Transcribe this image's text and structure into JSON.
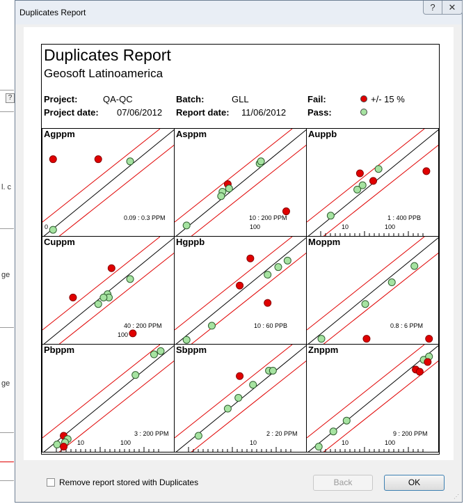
{
  "window": {
    "title": "Duplicates Report",
    "help_glyph": "?",
    "close_glyph": "✕"
  },
  "background_app": {
    "fragments": [
      "?",
      "l. c",
      "ge",
      "ge"
    ]
  },
  "report": {
    "title": "Duplicates Report",
    "company": "Geosoft Latinoamerica",
    "project_label": "Project:",
    "project": "QA-QC",
    "batch_label": "Batch:",
    "batch": "GLL",
    "fail_label": "Fail:",
    "fail_text": "+/- 15 %",
    "project_date_label": "Project date:",
    "project_date": "07/06/2012",
    "report_date_label": "Report date:",
    "report_date": "11/06/2012",
    "pass_label": "Pass:",
    "colors": {
      "fail": "#e00000",
      "pass": "#a6e3a1",
      "tolerance_line": "#e00000",
      "identity_line": "#000000"
    }
  },
  "panels": [
    {
      "name": "Agppm",
      "range": "0.09 : 0.3 PPM",
      "ticks": [
        "0"
      ],
      "points": [
        {
          "x": 0.08,
          "y": 0.72,
          "pass": false
        },
        {
          "x": 0.42,
          "y": 0.72,
          "pass": false
        },
        {
          "x": 0.66,
          "y": 0.7,
          "pass": true
        },
        {
          "x": 0.08,
          "y": 0.07,
          "pass": true
        }
      ]
    },
    {
      "name": "Asppm",
      "range": "10 : 200 PPM",
      "ticks": [
        "100"
      ],
      "points": [
        {
          "x": 0.4,
          "y": 0.49,
          "pass": false
        },
        {
          "x": 0.41,
          "y": 0.45,
          "pass": true
        },
        {
          "x": 0.36,
          "y": 0.42,
          "pass": true
        },
        {
          "x": 0.35,
          "y": 0.38,
          "pass": true
        },
        {
          "x": 0.64,
          "y": 0.68,
          "pass": true
        },
        {
          "x": 0.65,
          "y": 0.7,
          "pass": true
        },
        {
          "x": 0.84,
          "y": 0.24,
          "pass": false
        },
        {
          "x": 0.09,
          "y": 0.11,
          "pass": true
        }
      ]
    },
    {
      "name": "Auppb",
      "range": "1 : 400 PPB",
      "ticks": [
        "10",
        "100"
      ],
      "points": [
        {
          "x": 0.4,
          "y": 0.59,
          "pass": false
        },
        {
          "x": 0.5,
          "y": 0.52,
          "pass": false
        },
        {
          "x": 0.42,
          "y": 0.48,
          "pass": true
        },
        {
          "x": 0.38,
          "y": 0.44,
          "pass": true
        },
        {
          "x": 0.54,
          "y": 0.63,
          "pass": true
        },
        {
          "x": 0.9,
          "y": 0.61,
          "pass": false
        },
        {
          "x": 0.18,
          "y": 0.2,
          "pass": true
        }
      ]
    },
    {
      "name": "Cuppm",
      "range": "40 : 200 PPM",
      "ticks": [
        "100"
      ],
      "points": [
        {
          "x": 0.52,
          "y": 0.71,
          "pass": false
        },
        {
          "x": 0.23,
          "y": 0.44,
          "pass": false
        },
        {
          "x": 0.49,
          "y": 0.47,
          "pass": true
        },
        {
          "x": 0.5,
          "y": 0.44,
          "pass": true
        },
        {
          "x": 0.46,
          "y": 0.44,
          "pass": true
        },
        {
          "x": 0.42,
          "y": 0.38,
          "pass": true
        },
        {
          "x": 0.66,
          "y": 0.61,
          "pass": true
        },
        {
          "x": 0.68,
          "y": 0.11,
          "pass": false
        }
      ]
    },
    {
      "name": "Hgppb",
      "range": "10 : 60 PPB",
      "ticks": [],
      "points": [
        {
          "x": 0.57,
          "y": 0.8,
          "pass": false
        },
        {
          "x": 0.49,
          "y": 0.55,
          "pass": false
        },
        {
          "x": 0.7,
          "y": 0.39,
          "pass": false
        },
        {
          "x": 0.7,
          "y": 0.65,
          "pass": true
        },
        {
          "x": 0.78,
          "y": 0.72,
          "pass": true
        },
        {
          "x": 0.85,
          "y": 0.78,
          "pass": true
        },
        {
          "x": 0.28,
          "y": 0.18,
          "pass": true
        },
        {
          "x": 0.09,
          "y": 0.05,
          "pass": true
        }
      ]
    },
    {
      "name": "Moppm",
      "range": "0.8 : 6 PPM",
      "ticks": [],
      "points": [
        {
          "x": 0.81,
          "y": 0.73,
          "pass": true
        },
        {
          "x": 0.64,
          "y": 0.58,
          "pass": true
        },
        {
          "x": 0.44,
          "y": 0.38,
          "pass": true
        },
        {
          "x": 0.11,
          "y": 0.06,
          "pass": true
        },
        {
          "x": 0.45,
          "y": 0.06,
          "pass": false
        },
        {
          "x": 0.92,
          "y": 0.06,
          "pass": false
        }
      ]
    },
    {
      "name": "Pbppm",
      "range": "3 : 200 PPM",
      "ticks": [
        "10",
        "100"
      ],
      "points": [
        {
          "x": 0.84,
          "y": 0.91,
          "pass": true
        },
        {
          "x": 0.89,
          "y": 0.94,
          "pass": true
        },
        {
          "x": 0.7,
          "y": 0.72,
          "pass": true
        },
        {
          "x": 0.16,
          "y": 0.16,
          "pass": false
        },
        {
          "x": 0.19,
          "y": 0.13,
          "pass": true
        },
        {
          "x": 0.17,
          "y": 0.1,
          "pass": true
        },
        {
          "x": 0.11,
          "y": 0.08,
          "pass": true
        },
        {
          "x": 0.16,
          "y": 0.06,
          "pass": false
        }
      ]
    },
    {
      "name": "Sbppm",
      "range": "2 : 20 PPM",
      "ticks": [
        "10"
      ],
      "points": [
        {
          "x": 0.49,
          "y": 0.71,
          "pass": false
        },
        {
          "x": 0.71,
          "y": 0.76,
          "pass": true
        },
        {
          "x": 0.74,
          "y": 0.76,
          "pass": true
        },
        {
          "x": 0.59,
          "y": 0.63,
          "pass": true
        },
        {
          "x": 0.48,
          "y": 0.51,
          "pass": true
        },
        {
          "x": 0.4,
          "y": 0.41,
          "pass": true
        },
        {
          "x": 0.18,
          "y": 0.16,
          "pass": true
        }
      ]
    },
    {
      "name": "Znppm",
      "range": "9 : 200 PPM",
      "ticks": [
        "10",
        "100"
      ],
      "points": [
        {
          "x": 0.88,
          "y": 0.86,
          "pass": true
        },
        {
          "x": 0.92,
          "y": 0.89,
          "pass": true
        },
        {
          "x": 0.91,
          "y": 0.84,
          "pass": false
        },
        {
          "x": 0.82,
          "y": 0.77,
          "pass": false
        },
        {
          "x": 0.85,
          "y": 0.75,
          "pass": false
        },
        {
          "x": 0.3,
          "y": 0.3,
          "pass": true
        },
        {
          "x": 0.2,
          "y": 0.2,
          "pass": true
        },
        {
          "x": 0.09,
          "y": 0.06,
          "pass": true
        }
      ]
    }
  ],
  "footer": {
    "checkbox_label": "Remove report stored with Duplicates",
    "checked": false,
    "back_label": "Back",
    "ok_label": "OK"
  }
}
